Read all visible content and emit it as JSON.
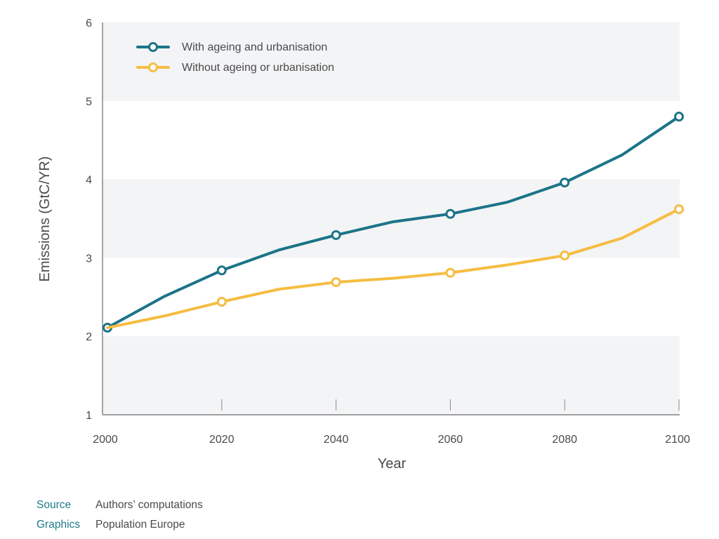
{
  "chart_data": {
    "type": "line",
    "x": [
      2000,
      2010,
      2020,
      2030,
      2040,
      2050,
      2060,
      2070,
      2080,
      2090,
      2100
    ],
    "xticks": [
      2000,
      2020,
      2040,
      2060,
      2080,
      2100
    ],
    "yticks": [
      1,
      2,
      3,
      4,
      5,
      6
    ],
    "xlim": [
      2000,
      2100
    ],
    "ylim": [
      1,
      6
    ],
    "xlabel": "Year",
    "ylabel": "Emissions (GtC/YR)",
    "grid": "alternating horizontal bands",
    "legend_position": "top-left",
    "series": [
      {
        "name": "With ageing and urbanisation",
        "color": "#1b7488",
        "values": [
          2.11,
          2.51,
          2.84,
          3.1,
          3.29,
          3.46,
          3.56,
          3.71,
          3.96,
          4.31,
          4.8
        ],
        "markers": [
          2000,
          2020,
          2040,
          2060,
          2080,
          2100
        ]
      },
      {
        "name": "Without ageing or urbanisation",
        "color": "#f5bd42",
        "values": [
          2.11,
          2.26,
          2.44,
          2.6,
          2.69,
          2.74,
          2.81,
          2.91,
          3.03,
          3.25,
          3.62
        ],
        "markers": [
          2020,
          2040,
          2060,
          2080,
          2100
        ]
      }
    ]
  },
  "credits": {
    "source_label": "Source",
    "source_value": "Authors’ computations",
    "graphics_label": "Graphics",
    "graphics_value": "Population Europe"
  }
}
